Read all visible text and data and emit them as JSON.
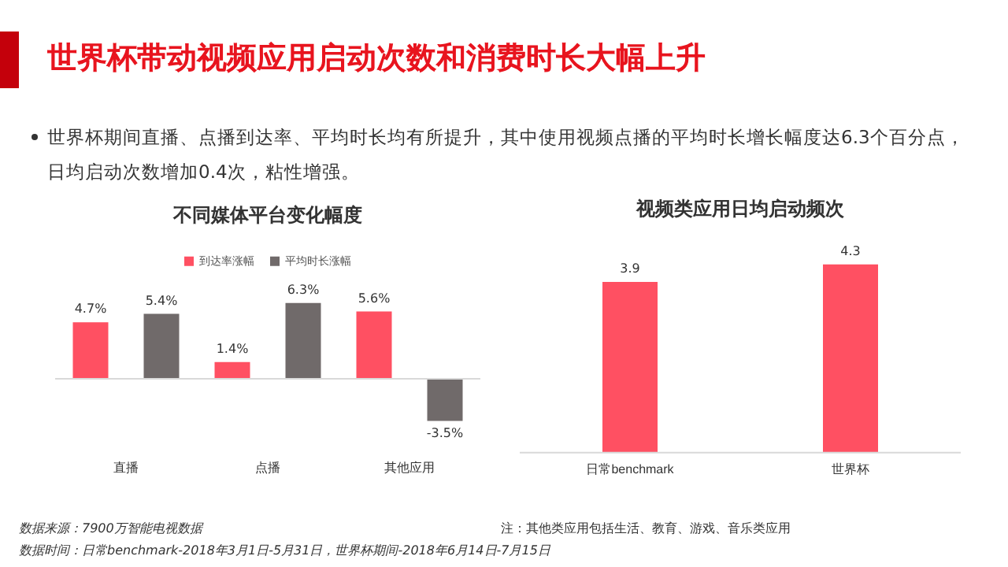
{
  "chart_data": [
    {
      "type": "other",
      "title": "世界杯带动视频应用启动次数和消费时长大幅上升",
      "annotations": [
        "世界杯期间直播、点播到达率、平均时长均有所提升，其中使用视频点播的平均时长增长幅度达6.3个百分点，日均启动次数增加0.4次，粘性增强。",
        "数据来源：7900万智能电视数据",
        "数据时间：日常benchmark-2018年3月1日-5月31日，世界杯期间-2018年6月14日-7月15日",
        "注：其他类应用包括生活、教育、游戏、音乐类应用"
      ]
    },
    {
      "type": "bar",
      "title": "不同媒体平台变化幅度",
      "categories": [
        "直播",
        "点播",
        "其他应用"
      ],
      "legend": "top",
      "tick_labels": "x",
      "grid": false,
      "series": [
        {
          "name": "到达率涨幅",
          "color": "#ff5062",
          "values": [
            4.7,
            1.4,
            5.6
          ],
          "value_labels": [
            "4.7%",
            "1.4%",
            "5.6%"
          ]
        },
        {
          "name": "平均时长涨幅",
          "color": "#706a6a",
          "values": [
            5.4,
            6.3,
            -3.5
          ],
          "value_labels": [
            "5.4%",
            "6.3%",
            "-3.5%"
          ]
        }
      ]
    },
    {
      "type": "bar",
      "title": "视频类应用日均启动频次",
      "categories": [
        "日常benchmark",
        "世界杯"
      ],
      "tick_labels": "x",
      "grid": false,
      "legend": false,
      "data_labels": true,
      "series": [
        {
          "color": "#ff5062",
          "values": [
            3.9,
            4.3
          ]
        }
      ]
    }
  ]
}
